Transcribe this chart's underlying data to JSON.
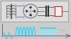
{
  "bg_color": "#cccccc",
  "circuit_bg": "#dddddd",
  "circuit_border": "#999999",
  "wave_color_fill": "#88eeff",
  "wave_color_line": "#44bbdd",
  "axis_color": "#444444",
  "node_color": "#aaaaff",
  "coil_color": "#666666",
  "wire_color": "#555555",
  "diode_color": "#222222",
  "cap_color": "#333333",
  "res_border": "#cc2222",
  "res_fill": "#eeeeee",
  "bottom_bg": "#b8b8c0"
}
